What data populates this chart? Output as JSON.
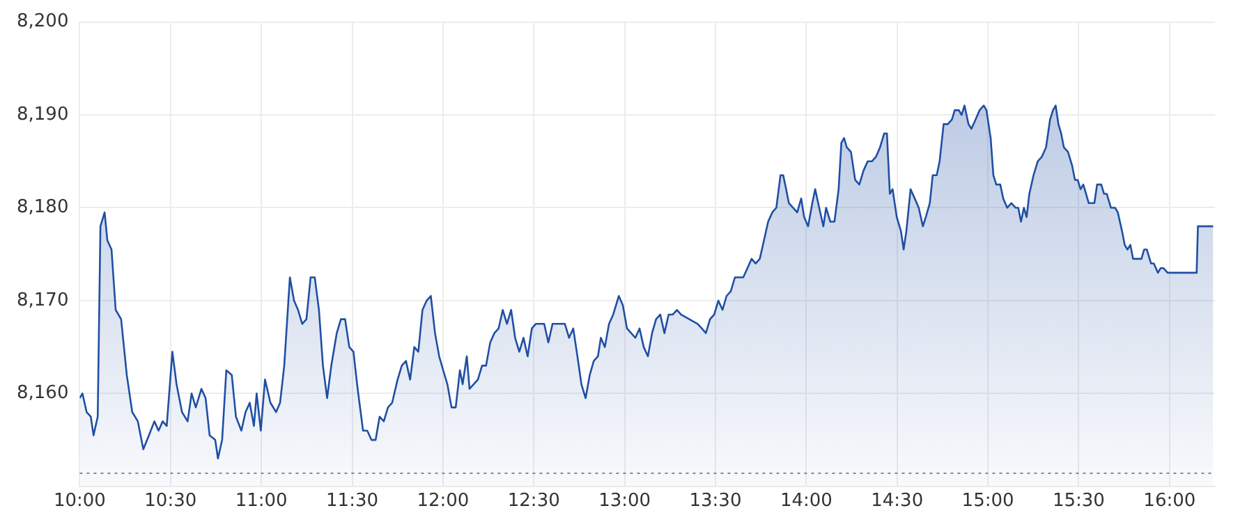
{
  "chart_data": {
    "type": "area",
    "color": "#1f4fa3",
    "grid": true,
    "legend": false,
    "marker": "none",
    "line_style": "solid",
    "xlim": [
      10,
      16.25
    ],
    "xticks": [
      {
        "value": 10,
        "label": "10:00"
      },
      {
        "value": 10.5,
        "label": "10:30"
      },
      {
        "value": 11,
        "label": "11:00"
      },
      {
        "value": 11.5,
        "label": "11:30"
      },
      {
        "value": 12,
        "label": "12:00"
      },
      {
        "value": 12.5,
        "label": "12:30"
      },
      {
        "value": 13,
        "label": "13:00"
      },
      {
        "value": 13.5,
        "label": "13:30"
      },
      {
        "value": 14,
        "label": "14:00"
      },
      {
        "value": 14.5,
        "label": "14:30"
      },
      {
        "value": 15,
        "label": "15:00"
      },
      {
        "value": 15.5,
        "label": "15:30"
      },
      {
        "value": 16,
        "label": "16:00"
      }
    ],
    "ylim": [
      8150,
      8200
    ],
    "yticks": [
      {
        "value": 8160,
        "label": "8,160"
      },
      {
        "value": 8170,
        "label": "8,170"
      },
      {
        "value": 8180,
        "label": "8,180"
      },
      {
        "value": 8190,
        "label": "8,190"
      },
      {
        "value": 8200,
        "label": "8,200"
      }
    ],
    "ref_lines": [
      {
        "axis": "y",
        "value": 8151.4,
        "line_style": "dotted",
        "color": "#888888"
      }
    ],
    "x": [
      10.0,
      10.015,
      10.038,
      10.061,
      10.076,
      10.099,
      10.114,
      10.137,
      10.152,
      10.175,
      10.198,
      10.228,
      10.259,
      10.289,
      10.32,
      10.35,
      10.381,
      10.411,
      10.434,
      10.457,
      10.479,
      10.51,
      10.533,
      10.563,
      10.594,
      10.616,
      10.639,
      10.67,
      10.693,
      10.715,
      10.746,
      10.761,
      10.784,
      10.807,
      10.837,
      10.86,
      10.89,
      10.913,
      10.936,
      10.959,
      10.974,
      10.997,
      11.02,
      11.05,
      11.081,
      11.103,
      11.126,
      11.157,
      11.18,
      11.202,
      11.225,
      11.248,
      11.271,
      11.294,
      11.317,
      11.339,
      11.362,
      11.385,
      11.415,
      11.438,
      11.461,
      11.484,
      11.507,
      11.53,
      11.56,
      11.583,
      11.606,
      11.629,
      11.651,
      11.674,
      11.697,
      11.72,
      11.75,
      11.773,
      11.796,
      11.819,
      11.842,
      11.864,
      11.887,
      11.91,
      11.933,
      11.956,
      11.979,
      12.001,
      12.024,
      12.047,
      12.07,
      12.093,
      12.108,
      12.131,
      12.146,
      12.169,
      12.192,
      12.215,
      12.237,
      12.26,
      12.283,
      12.306,
      12.329,
      12.352,
      12.375,
      12.397,
      12.42,
      12.443,
      12.466,
      12.489,
      12.511,
      12.557,
      12.58,
      12.603,
      12.671,
      12.694,
      12.717,
      12.74,
      12.762,
      12.785,
      12.808,
      12.83,
      12.853,
      12.869,
      12.891,
      12.914,
      12.937,
      12.968,
      12.99,
      13.013,
      13.036,
      13.059,
      13.082,
      13.105,
      13.128,
      13.151,
      13.173,
      13.196,
      13.219,
      13.242,
      13.265,
      13.288,
      13.31,
      13.356,
      13.402,
      13.425,
      13.447,
      13.47,
      13.493,
      13.516,
      13.539,
      13.561,
      13.584,
      13.607,
      13.653,
      13.676,
      13.699,
      13.721,
      13.744,
      13.767,
      13.79,
      13.813,
      13.835,
      13.858,
      13.873,
      13.889,
      13.904,
      13.927,
      13.95,
      13.972,
      13.988,
      14.01,
      14.033,
      14.049,
      14.071,
      14.094,
      14.109,
      14.132,
      14.155,
      14.178,
      14.193,
      14.208,
      14.223,
      14.246,
      14.269,
      14.292,
      14.315,
      14.338,
      14.361,
      14.384,
      14.406,
      14.429,
      14.444,
      14.46,
      14.475,
      14.498,
      14.521,
      14.536,
      14.551,
      14.574,
      14.597,
      14.619,
      14.642,
      14.658,
      14.68,
      14.696,
      14.718,
      14.734,
      14.756,
      14.779,
      14.802,
      14.817,
      14.84,
      14.855,
      14.871,
      14.893,
      14.909,
      14.932,
      14.954,
      14.977,
      14.992,
      15.015,
      15.03,
      15.046,
      15.068,
      15.084,
      15.106,
      15.129,
      15.152,
      15.167,
      15.182,
      15.198,
      15.213,
      15.228,
      15.251,
      15.274,
      15.297,
      15.32,
      15.342,
      15.358,
      15.373,
      15.388,
      15.403,
      15.418,
      15.441,
      15.464,
      15.479,
      15.494,
      15.51,
      15.525,
      15.54,
      15.555,
      15.586,
      15.601,
      15.624,
      15.639,
      15.654,
      15.677,
      15.7,
      15.715,
      15.738,
      15.753,
      15.768,
      15.784,
      15.799,
      15.845,
      15.86,
      15.875,
      15.898,
      15.913,
      15.936,
      15.951,
      15.966,
      15.989,
      16.149,
      16.156,
      16.24
    ],
    "values": [
      8159.5,
      8160,
      8158,
      8157.5,
      8155.5,
      8157.5,
      8178,
      8179.5,
      8176.5,
      8175.5,
      8169,
      8168,
      8162,
      8158,
      8157,
      8154,
      8155.5,
      8157,
      8156,
      8157,
      8156.5,
      8164.5,
      8161,
      8158,
      8157,
      8160,
      8158.5,
      8160.5,
      8159.5,
      8155.5,
      8155,
      8153,
      8155,
      8162.5,
      8162,
      8157.5,
      8156,
      8158,
      8159,
      8156.5,
      8160,
      8156,
      8161.5,
      8159,
      8158,
      8159,
      8163,
      8172.5,
      8170,
      8169,
      8167.5,
      8168,
      8172.5,
      8172.5,
      8169,
      8163,
      8159.5,
      8163,
      8166.5,
      8168,
      8168,
      8165,
      8164.5,
      8160.5,
      8156,
      8156,
      8155,
      8155,
      8157.5,
      8157,
      8158.5,
      8159,
      8161.5,
      8163,
      8163.5,
      8161.5,
      8165,
      8164.5,
      8169,
      8170,
      8170.5,
      8166.5,
      8164,
      8162.5,
      8161,
      8158.5,
      8158.5,
      8162.5,
      8161,
      8164,
      8160.5,
      8161,
      8161.5,
      8163,
      8163,
      8165.5,
      8166.5,
      8167,
      8169,
      8167.5,
      8169,
      8166,
      8164.5,
      8166,
      8164,
      8167,
      8167.5,
      8167.5,
      8165.5,
      8167.5,
      8167.5,
      8166,
      8167,
      8164,
      8161,
      8159.5,
      8162,
      8163.5,
      8164,
      8166,
      8165,
      8167.5,
      8168.5,
      8170.5,
      8169.5,
      8167,
      8166.5,
      8166,
      8167,
      8165,
      8164,
      8166.5,
      8168,
      8168.5,
      8166.5,
      8168.5,
      8168.5,
      8169,
      8168.5,
      8168,
      8167.5,
      8167,
      8166.5,
      8168,
      8168.5,
      8170,
      8169,
      8170.5,
      8171,
      8172.5,
      8172.5,
      8173.5,
      8174.5,
      8174,
      8174.5,
      8176.5,
      8178.5,
      8179.5,
      8180,
      8183.5,
      8183.5,
      8182,
      8180.5,
      8180,
      8179.5,
      8181,
      8179,
      8178,
      8180.5,
      8182,
      8180,
      8178,
      8180,
      8178.5,
      8178.5,
      8182,
      8187,
      8187.5,
      8186.5,
      8186,
      8183,
      8182.5,
      8184,
      8185,
      8185,
      8185.5,
      8186.5,
      8188,
      8188,
      8181.5,
      8182,
      8179,
      8177.5,
      8175.5,
      8177.5,
      8182,
      8181,
      8180,
      8178,
      8179,
      8180.5,
      8183.5,
      8183.5,
      8185,
      8189,
      8189,
      8189.5,
      8190.5,
      8190.5,
      8190,
      8191,
      8189,
      8188.5,
      8189.5,
      8190.5,
      8191,
      8190.5,
      8187.5,
      8183.5,
      8182.5,
      8182.5,
      8181,
      8180,
      8180.5,
      8180,
      8180,
      8178.5,
      8180,
      8179,
      8181.5,
      8183.5,
      8185,
      8185.5,
      8186.5,
      8189.5,
      8190.5,
      8191,
      8189,
      8188,
      8186.5,
      8186,
      8184.5,
      8183,
      8183,
      8182,
      8182.5,
      8181.5,
      8180.5,
      8180.5,
      8182.5,
      8182.5,
      8181.5,
      8181.5,
      8180,
      8180,
      8179.5,
      8177.5,
      8176,
      8175.5,
      8176,
      8174.5,
      8174.5,
      8175.5,
      8175.5,
      8174,
      8174,
      8173,
      8173.5,
      8173.5,
      8173,
      8173,
      8178,
      8178
    ]
  }
}
